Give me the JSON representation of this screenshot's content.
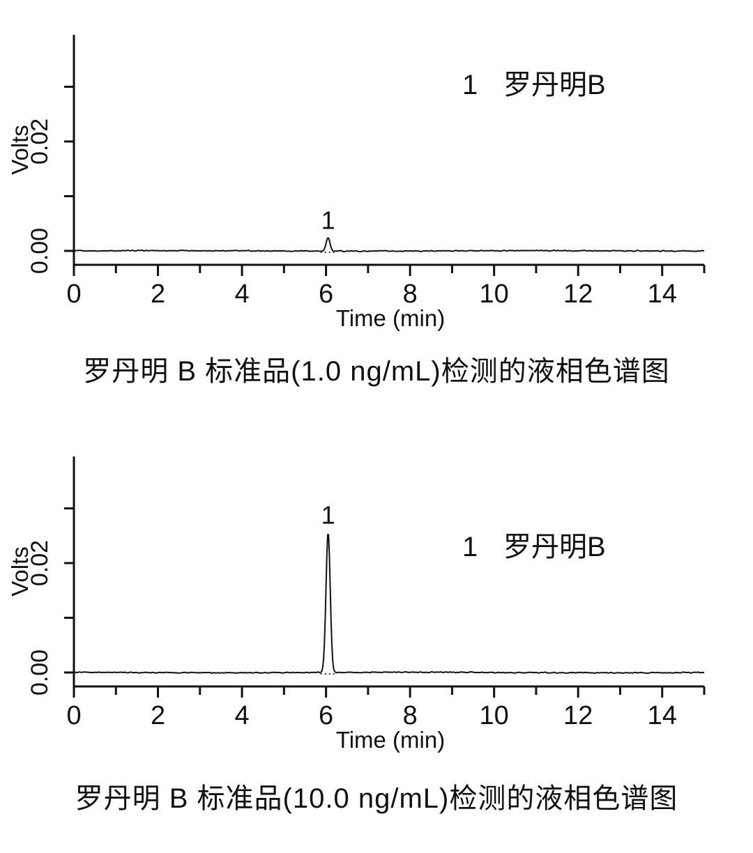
{
  "page": {
    "background_color": "#ffffff",
    "text_color": "#111111"
  },
  "chart_data": [
    {
      "type": "line",
      "caption": "罗丹明 B 标准品(1.0 ng/mL)检测的液相色谱图",
      "xlabel": "Time (min)",
      "ylabel": "Volts",
      "xlim": [
        0,
        15
      ],
      "ylim_volts": [
        -0.0026,
        0.0395
      ],
      "x_major_ticks": [
        0,
        2,
        4,
        6,
        8,
        10,
        12,
        14
      ],
      "x_minor_ticks": [
        1,
        3,
        5,
        7,
        9,
        11,
        13,
        15
      ],
      "y_ticks_volts": [
        0,
        0.01,
        0.02,
        0.03
      ],
      "y_tick_labels": [
        {
          "value": 0,
          "label": "0.00"
        },
        {
          "value": 0.02,
          "label": "0.02"
        }
      ],
      "grid": false,
      "legend": {
        "number": "1",
        "label": "罗丹明B",
        "position": "upper-right"
      },
      "peaks": [
        {
          "number": "1",
          "retention_time_min": 6.05,
          "height_volts": 0.0025,
          "sigma_min": 0.045
        }
      ],
      "baseline_volts": 0.0,
      "noise_amplitude_volts": 0.00012,
      "line_color": "#111111"
    },
    {
      "type": "line",
      "caption": "罗丹明 B 标准品(10.0 ng/mL)检测的液相色谱图",
      "xlabel": "Time (min)",
      "ylabel": "Volts",
      "xlim": [
        0,
        15
      ],
      "ylim_volts": [
        -0.0026,
        0.0395
      ],
      "x_major_ticks": [
        0,
        2,
        4,
        6,
        8,
        10,
        12,
        14
      ],
      "x_minor_ticks": [
        1,
        3,
        5,
        7,
        9,
        11,
        13,
        15
      ],
      "y_ticks_volts": [
        0,
        0.01,
        0.02,
        0.03
      ],
      "y_tick_labels": [
        {
          "value": 0,
          "label": "0.00"
        },
        {
          "value": 0.02,
          "label": "0.02"
        }
      ],
      "grid": false,
      "legend": {
        "number": "1",
        "label": "罗丹明B",
        "position": "upper-right"
      },
      "peaks": [
        {
          "number": "1",
          "retention_time_min": 6.05,
          "height_volts": 0.0257,
          "sigma_min": 0.05
        }
      ],
      "baseline_volts": 0.0,
      "noise_amplitude_volts": 0.00012,
      "line_color": "#111111"
    }
  ]
}
